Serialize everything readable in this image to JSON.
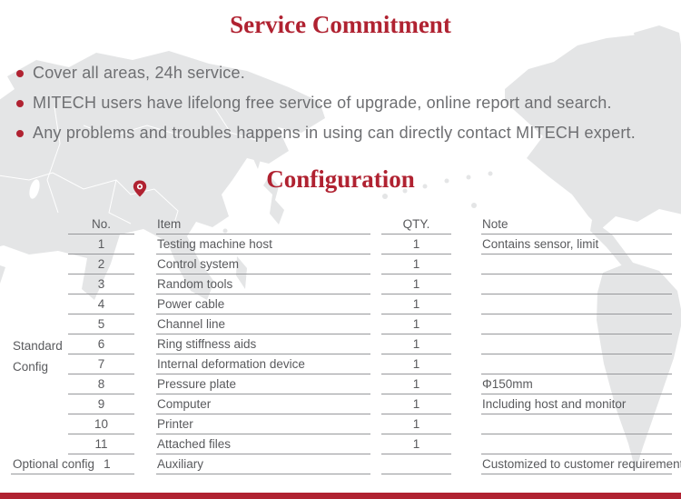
{
  "titles": {
    "service": "Service Commitment",
    "configuration": "Configuration"
  },
  "bullets": [
    "Cover all areas, 24h service.",
    "MITECH users have lifelong free service of upgrade, online report and search.",
    "Any problems and troubles happens in using can directly contact MITECH expert."
  ],
  "icons": {
    "bullet": "red-dot-icon",
    "map_pin": "location-pin-icon"
  },
  "table": {
    "headers": {
      "no": "No.",
      "item": "Item",
      "qty": "QTY.",
      "note": "Note"
    },
    "group_standard": {
      "line1": "Standard",
      "line2": "Config"
    },
    "rows": [
      {
        "no": "1",
        "item": "Testing machine host",
        "qty": "1",
        "note": "Contains sensor, limit"
      },
      {
        "no": "2",
        "item": "Control system",
        "qty": "1",
        "note": ""
      },
      {
        "no": "3",
        "item": "Random tools",
        "qty": "1",
        "note": ""
      },
      {
        "no": "4",
        "item": "Power cable",
        "qty": "1",
        "note": ""
      },
      {
        "no": "5",
        "item": "Channel line",
        "qty": "1",
        "note": ""
      },
      {
        "no": "6",
        "item": "Ring stiffness aids",
        "qty": "1",
        "note": ""
      },
      {
        "no": "7",
        "item": "Internal deformation device",
        "qty": "1",
        "note": ""
      },
      {
        "no": "8",
        "item": "Pressure plate",
        "qty": "1",
        "note": "Φ150mm"
      },
      {
        "no": "9",
        "item": "Computer",
        "qty": "1",
        "note": "Including host and monitor"
      },
      {
        "no": "10",
        "item": "Printer",
        "qty": "1",
        "note": ""
      },
      {
        "no": "11",
        "item": "Attached files",
        "qty": "1",
        "note": ""
      },
      {
        "group": "Optional config",
        "no": "1",
        "item": "Auxiliary",
        "qty": "",
        "note": "Customized to customer requirements",
        "optional": true
      }
    ]
  },
  "colors": {
    "accent": "#b02231",
    "map_gray": "#e4e5e6",
    "text_gray": "#6e6f72",
    "table_text": "#595a5d",
    "line_gray": "#97989b"
  }
}
